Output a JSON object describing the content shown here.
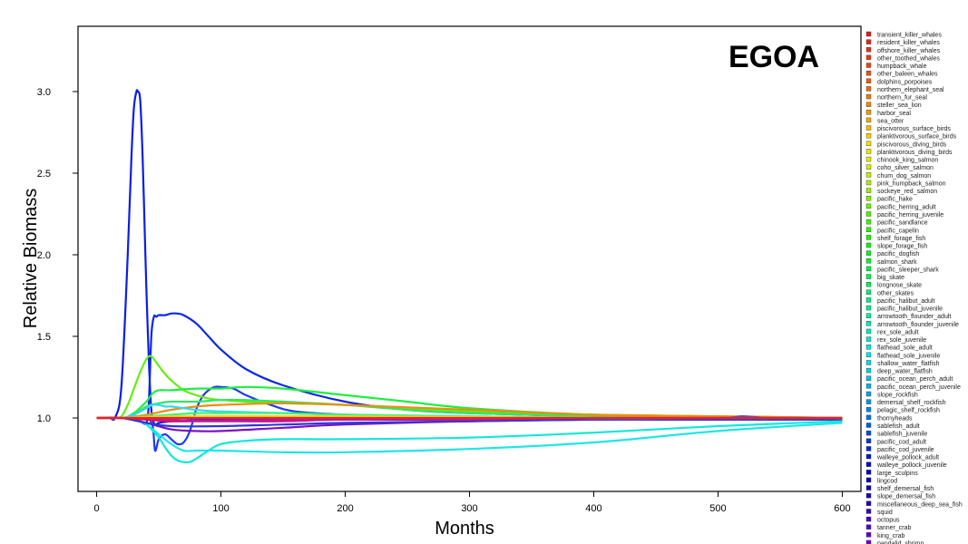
{
  "chart_data": {
    "type": "line",
    "title": "EGOA",
    "xlabel": "Months",
    "ylabel": "Relative Biomass",
    "xlim": [
      -15,
      615
    ],
    "ylim": [
      0.55,
      3.4
    ],
    "x_ticks": [
      0,
      100,
      200,
      300,
      400,
      500,
      600
    ],
    "y_ticks": [
      1.0,
      1.5,
      2.0,
      2.5,
      3.0
    ],
    "y_tick_labels": [
      "1.0",
      "1.5",
      "2.0",
      "2.5",
      "3.0"
    ],
    "grid": false,
    "legend_position": "right",
    "legend": [
      {
        "name": "transient_killer_whales",
        "color": "#e11d1d"
      },
      {
        "name": "resident_killer_whales",
        "color": "#e2261a"
      },
      {
        "name": "offshore_killer_whales",
        "color": "#e43018"
      },
      {
        "name": "other_toothed_whales",
        "color": "#e53b15"
      },
      {
        "name": "humpback_whale",
        "color": "#e64612"
      },
      {
        "name": "other_baleen_whales",
        "color": "#e85210"
      },
      {
        "name": "dolphins_porpoises",
        "color": "#ea5f0d"
      },
      {
        "name": "northern_elephant_seal",
        "color": "#ec6c0b"
      },
      {
        "name": "northern_fur_seal",
        "color": "#ee7a08"
      },
      {
        "name": "steller_sea_lion",
        "color": "#f08906"
      },
      {
        "name": "harbor_seal",
        "color": "#f29904"
      },
      {
        "name": "sea_otter",
        "color": "#f4aa02"
      },
      {
        "name": "piscivorous_surface_birds",
        "color": "#f6bb00"
      },
      {
        "name": "planktivorous_surface_birds",
        "color": "#f8cd00"
      },
      {
        "name": "piscivorous_diving_birds",
        "color": "#f8dd00"
      },
      {
        "name": "planktivorous_diving_birds",
        "color": "#f2e600"
      },
      {
        "name": "chinook_king_salmon",
        "color": "#e4ec00"
      },
      {
        "name": "coho_silver_salmon",
        "color": "#d3ee00"
      },
      {
        "name": "chum_dog_salmon",
        "color": "#c0ef00"
      },
      {
        "name": "pink_humpback_salmon",
        "color": "#acf000"
      },
      {
        "name": "sockeye_red_salmon",
        "color": "#96f100"
      },
      {
        "name": "pacific_hake",
        "color": "#80f200"
      },
      {
        "name": "pacific_herring_adult",
        "color": "#6af300"
      },
      {
        "name": "pacific_herring_juvenile",
        "color": "#55f400"
      },
      {
        "name": "pacific_sandlance",
        "color": "#40f500"
      },
      {
        "name": "pacific_capelin",
        "color": "#2df500"
      },
      {
        "name": "shelf_forage_fish",
        "color": "#1cf505"
      },
      {
        "name": "slope_forage_fish",
        "color": "#10f512"
      },
      {
        "name": "pacific_dogfish",
        "color": "#08f420"
      },
      {
        "name": "salmon_shark",
        "color": "#04f430"
      },
      {
        "name": "pacific_sleeper_shark",
        "color": "#02f340"
      },
      {
        "name": "big_skate",
        "color": "#00f250"
      },
      {
        "name": "longnose_skate",
        "color": "#00f160"
      },
      {
        "name": "other_skates",
        "color": "#00f070"
      },
      {
        "name": "pacific_halibut_adult",
        "color": "#00ef80"
      },
      {
        "name": "pacific_halibut_juvenile",
        "color": "#00ee90"
      },
      {
        "name": "arrowtooth_flounder_adult",
        "color": "#00eda0"
      },
      {
        "name": "arrowtooth_flounder_juvenile",
        "color": "#00ecb0"
      },
      {
        "name": "rex_sole_adult",
        "color": "#00ebc0"
      },
      {
        "name": "rex_sole_juvenile",
        "color": "#00eacf"
      },
      {
        "name": "flathead_sole_adult",
        "color": "#00e9dd"
      },
      {
        "name": "flathead_sole_juvenile",
        "color": "#00e6e8"
      },
      {
        "name": "shallow_water_flatfish",
        "color": "#00dbe8"
      },
      {
        "name": "deep_water_flatfish",
        "color": "#00cfe8"
      },
      {
        "name": "pacific_ocean_perch_adult",
        "color": "#00c2e8"
      },
      {
        "name": "pacific_ocean_perch_juvenile",
        "color": "#00b4e8"
      },
      {
        "name": "slope_rockfish",
        "color": "#00a5e8"
      },
      {
        "name": "demersal_shelf_rockfish",
        "color": "#0095e8"
      },
      {
        "name": "pelagic_shelf_rockfish",
        "color": "#0084e8"
      },
      {
        "name": "thornyheads",
        "color": "#0072e6"
      },
      {
        "name": "sablefish_adult",
        "color": "#005fe2"
      },
      {
        "name": "sablefish_juvenile",
        "color": "#004cde"
      },
      {
        "name": "pacific_cod_adult",
        "color": "#003ad9"
      },
      {
        "name": "pacific_cod_juvenile",
        "color": "#0029d4"
      },
      {
        "name": "walleye_pollock_adult",
        "color": "#001ace"
      },
      {
        "name": "walleye_pollock_juvenile",
        "color": "#000dc8"
      },
      {
        "name": "large_sculpins",
        "color": "#0003c2"
      },
      {
        "name": "lingcod",
        "color": "#0500bc"
      },
      {
        "name": "shelf_demersal_fish",
        "color": "#1000b8"
      },
      {
        "name": "slope_demersal_fish",
        "color": "#1c00b8"
      },
      {
        "name": "miscellaneous_deep_sea_fish",
        "color": "#2900bc"
      },
      {
        "name": "squid",
        "color": "#3600c2"
      },
      {
        "name": "octopus",
        "color": "#4400c8"
      },
      {
        "name": "tanner_crab",
        "color": "#5300cd"
      },
      {
        "name": "king_crab",
        "color": "#6200d0"
      },
      {
        "name": "pandalid_shrimp",
        "color": "#7100d2"
      }
    ],
    "series": [
      {
        "color": "#0a1ee8",
        "x": [
          0,
          10,
          15,
          20,
          25,
          28,
          30,
          32,
          33,
          35,
          37,
          39,
          40,
          42,
          44,
          46,
          48,
          50,
          60,
          80,
          100,
          150,
          200,
          300,
          400,
          500,
          600
        ],
        "y": [
          1.0,
          1.0,
          1.005,
          1.2,
          2.0,
          2.6,
          2.9,
          3.0,
          3.0,
          2.95,
          2.6,
          2.05,
          1.8,
          1.35,
          1.05,
          0.97,
          0.96,
          0.97,
          0.98,
          0.99,
          0.99,
          0.99,
          0.99,
          0.99,
          0.99,
          0.99,
          0.99
        ]
      },
      {
        "color": "#0a28e6",
        "x": [
          0,
          20,
          25,
          30,
          35,
          40,
          42,
          44,
          46,
          48,
          50,
          55,
          60,
          65,
          70,
          80,
          90,
          100,
          120,
          150,
          200,
          250,
          300,
          400,
          500,
          600
        ],
        "y": [
          1.0,
          1.0,
          1.0,
          0.99,
          0.98,
          0.97,
          1.1,
          1.5,
          1.62,
          1.62,
          1.63,
          1.63,
          1.64,
          1.64,
          1.63,
          1.58,
          1.5,
          1.42,
          1.3,
          1.2,
          1.1,
          1.05,
          1.03,
          1.01,
          1.0,
          1.0
        ]
      },
      {
        "color": "#1e3cf0",
        "x": [
          0,
          30,
          40,
          45,
          47,
          50,
          55,
          60,
          65,
          70,
          75,
          80,
          85,
          90,
          95,
          100,
          110,
          120,
          140,
          160,
          200,
          250,
          300,
          400,
          500,
          600
        ],
        "y": [
          1.0,
          1.0,
          1.0,
          0.95,
          0.8,
          0.87,
          0.9,
          0.87,
          0.84,
          0.85,
          0.92,
          1.05,
          1.13,
          1.17,
          1.19,
          1.19,
          1.18,
          1.14,
          1.08,
          1.04,
          1.02,
          1.01,
          1.0,
          1.0,
          1.0,
          1.0
        ]
      },
      {
        "color": "#66ee10",
        "x": [
          0,
          15,
          20,
          25,
          30,
          35,
          40,
          43,
          45,
          48,
          50,
          55,
          60,
          70,
          80,
          90,
          100,
          120,
          150,
          200,
          250,
          300,
          400,
          500,
          600
        ],
        "y": [
          1.0,
          1.0,
          1.01,
          1.08,
          1.18,
          1.28,
          1.36,
          1.38,
          1.37,
          1.34,
          1.32,
          1.27,
          1.23,
          1.17,
          1.14,
          1.12,
          1.11,
          1.1,
          1.09,
          1.08,
          1.06,
          1.04,
          1.02,
          1.01,
          1.0
        ]
      },
      {
        "color": "#1cf040",
        "x": [
          0,
          20,
          30,
          40,
          45,
          50,
          60,
          80,
          100,
          120,
          150,
          200,
          250,
          300,
          400,
          500,
          600
        ],
        "y": [
          1.0,
          1.0,
          1.03,
          1.1,
          1.15,
          1.17,
          1.17,
          1.18,
          1.18,
          1.19,
          1.18,
          1.14,
          1.1,
          1.06,
          1.02,
          1.01,
          1.0
        ]
      },
      {
        "color": "#2ee860",
        "x": [
          0,
          20,
          30,
          40,
          50,
          60,
          80,
          100,
          120,
          150,
          200,
          250,
          300,
          400,
          500,
          600
        ],
        "y": [
          1.0,
          1.0,
          1.02,
          1.07,
          1.09,
          1.1,
          1.1,
          1.11,
          1.11,
          1.1,
          1.08,
          1.05,
          1.03,
          1.01,
          1.0,
          1.0
        ]
      },
      {
        "color": "#f08c10",
        "x": [
          0,
          20,
          40,
          60,
          80,
          100,
          150,
          200,
          300,
          400,
          500,
          600
        ],
        "y": [
          1.0,
          1.0,
          1.02,
          1.05,
          1.07,
          1.08,
          1.09,
          1.08,
          1.05,
          1.02,
          1.01,
          1.0
        ]
      },
      {
        "color": "#20e6e6",
        "x": [
          0,
          20,
          30,
          40,
          50,
          60,
          70,
          80,
          100,
          150,
          200,
          300,
          400,
          500,
          600
        ],
        "y": [
          1.0,
          1.0,
          0.99,
          0.96,
          0.9,
          0.84,
          0.8,
          0.8,
          0.8,
          0.79,
          0.79,
          0.81,
          0.85,
          0.92,
          0.97
        ]
      },
      {
        "color": "#10e8d8",
        "x": [
          0,
          20,
          30,
          40,
          50,
          55,
          60,
          65,
          70,
          75,
          80,
          90,
          100,
          120,
          150,
          200,
          300,
          400,
          500,
          600
        ],
        "y": [
          1.0,
          1.0,
          0.99,
          0.96,
          0.88,
          0.82,
          0.77,
          0.74,
          0.73,
          0.73,
          0.75,
          0.8,
          0.84,
          0.86,
          0.87,
          0.87,
          0.88,
          0.91,
          0.95,
          0.98
        ]
      },
      {
        "color": "#7b10c8",
        "x": [
          0,
          20,
          40,
          60,
          80,
          100,
          150,
          200,
          300,
          400,
          500,
          600
        ],
        "y": [
          1.0,
          1.0,
          0.97,
          0.93,
          0.92,
          0.92,
          0.94,
          0.96,
          0.98,
          0.99,
          1.0,
          1.0
        ]
      },
      {
        "color": "#2a3ad8",
        "x": [
          0,
          20,
          40,
          60,
          100,
          150,
          200,
          300,
          400,
          500,
          520,
          540,
          560,
          600
        ],
        "y": [
          1.0,
          1.0,
          0.97,
          0.95,
          0.95,
          0.96,
          0.97,
          0.98,
          0.99,
          1.0,
          1.01,
          1.0,
          1.0,
          1.0
        ]
      },
      {
        "color": "#30d8f0",
        "x": [
          0,
          20,
          30,
          40,
          45,
          50,
          55,
          60,
          70,
          80,
          100,
          150,
          200,
          300,
          400,
          500,
          600
        ],
        "y": [
          1.0,
          1.0,
          1.02,
          1.06,
          1.08,
          1.08,
          1.07,
          1.07,
          1.06,
          1.05,
          1.04,
          1.03,
          1.02,
          1.01,
          1.0,
          1.0,
          1.0
        ]
      },
      {
        "color": "#40f080",
        "x": [
          0,
          20,
          40,
          60,
          80,
          100,
          150,
          200,
          300,
          400,
          500,
          600
        ],
        "y": [
          1.0,
          1.0,
          1.01,
          1.02,
          1.03,
          1.03,
          1.03,
          1.02,
          1.01,
          1.0,
          1.0,
          1.0
        ]
      },
      {
        "color": "#e01060",
        "x": [
          0,
          20,
          40,
          60,
          80,
          100,
          150,
          200,
          300,
          400,
          500,
          600
        ],
        "y": [
          1.0,
          1.0,
          0.99,
          0.98,
          0.98,
          0.98,
          0.98,
          0.99,
          0.99,
          1.0,
          1.0,
          1.0
        ]
      },
      {
        "color": "#a020c0",
        "x": [
          0,
          20,
          40,
          60,
          80,
          100,
          200,
          300,
          400,
          500,
          600
        ],
        "y": [
          1.0,
          1.0,
          1.0,
          0.99,
          0.985,
          0.985,
          0.99,
          0.995,
          1.0,
          1.0,
          1.0
        ]
      },
      {
        "color": "#e8e010",
        "x": [
          0,
          20,
          40,
          60,
          80,
          100,
          200,
          300,
          400,
          500,
          600
        ],
        "y": [
          1.0,
          1.0,
          1.005,
          1.01,
          1.012,
          1.012,
          1.01,
          1.005,
          1.0,
          1.0,
          1.0
        ]
      },
      {
        "color": "#ff1a1a",
        "x": [
          0,
          20,
          40,
          60,
          80,
          100,
          200,
          300,
          400,
          500,
          600
        ],
        "y": [
          1.0,
          1.0,
          1.0,
          1.0,
          1.0,
          1.0,
          1.0,
          1.0,
          1.0,
          1.0,
          1.0
        ]
      }
    ]
  }
}
